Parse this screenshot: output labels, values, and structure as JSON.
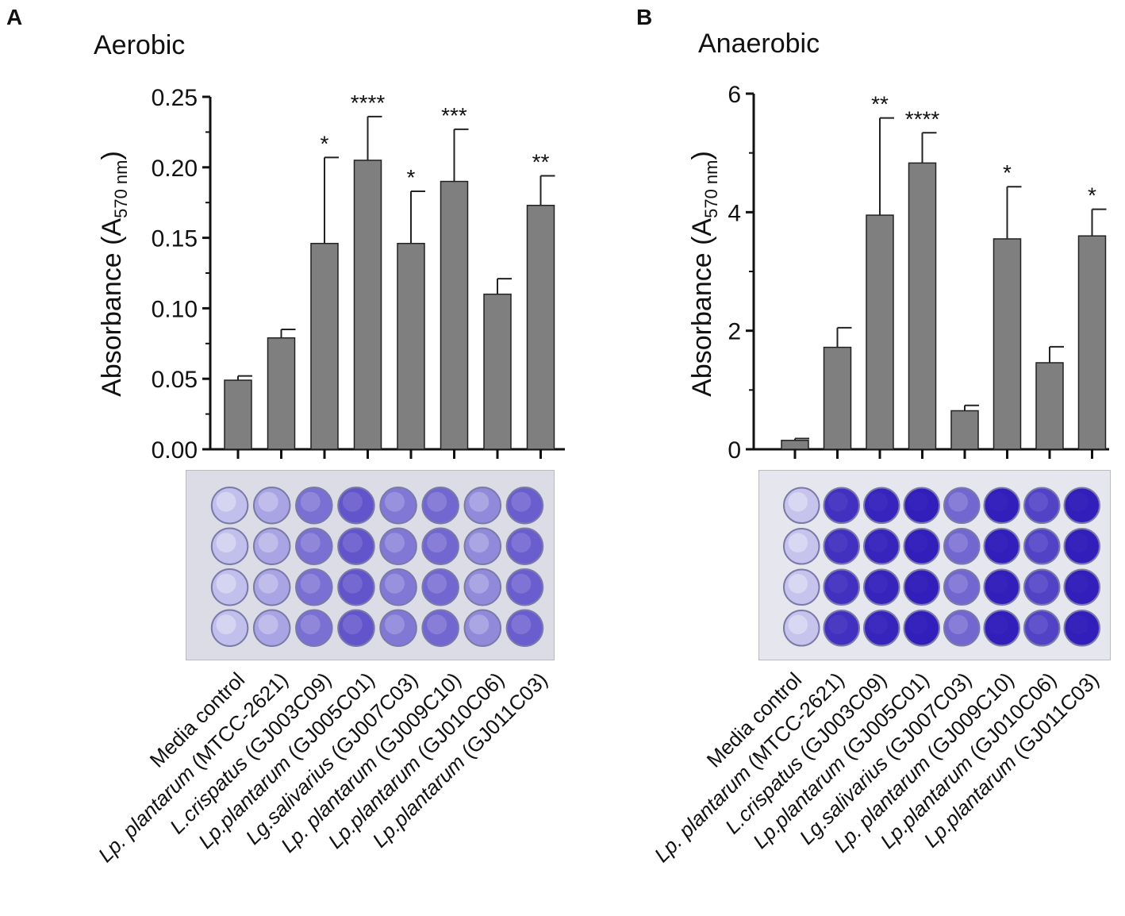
{
  "panels": [
    {
      "letter": "A",
      "title": "Aerobic",
      "photo_alt": "96-well plate crystal violet staining (aerobic)"
    },
    {
      "letter": "B",
      "title": "Anaerobic",
      "photo_alt": "96-well plate crystal violet staining (anaerobic)"
    }
  ],
  "colors": {
    "bar": "#7f7f7f",
    "bar_edge": "#222222",
    "stain_light": "#c9c8ee",
    "stain_dark": "#2a16b8"
  },
  "chart_data": [
    {
      "type": "bar",
      "title": "Aerobic",
      "ylabel_main": "Absorbance (A",
      "ylabel_sub": "570 nm",
      "ylabel_close": ")",
      "ylim": [
        0,
        0.25
      ],
      "yticks": [
        0,
        0.05,
        0.1,
        0.15,
        0.2,
        0.25
      ],
      "yticklabels": [
        "0.00",
        "0.05",
        "0.10",
        "0.15",
        "0.20",
        "0.25"
      ],
      "categories": [
        {
          "prefix": "",
          "species": "Media control",
          "strain": ""
        },
        {
          "prefix": "Lp. ",
          "species": "plantarum",
          "strain": " (MTCC-2621)"
        },
        {
          "prefix": "L.",
          "species": "crispatus",
          "strain": " (GJ003C09)"
        },
        {
          "prefix": "Lp.",
          "species": "plantarum",
          "strain": " (GJ005C01)"
        },
        {
          "prefix": "Lg.",
          "species": "salivarius",
          "strain": " (GJ007C03)"
        },
        {
          "prefix": "Lp. ",
          "species": "plantarum",
          "strain": " (GJ009C10)"
        },
        {
          "prefix": "Lp.",
          "species": "plantarum",
          "strain": " (GJ010C06)"
        },
        {
          "prefix": "Lp.",
          "species": "plantarum",
          "strain": " (GJ011C03)"
        }
      ],
      "values": [
        0.049,
        0.079,
        0.146,
        0.205,
        0.146,
        0.19,
        0.11,
        0.173
      ],
      "errors": [
        0.003,
        0.006,
        0.061,
        0.031,
        0.037,
        0.037,
        0.011,
        0.021
      ],
      "significance": [
        "",
        "",
        "*",
        "****",
        "*",
        "***",
        "",
        "**"
      ],
      "well_intensity": [
        0.05,
        0.2,
        0.5,
        0.65,
        0.45,
        0.55,
        0.35,
        0.6
      ]
    },
    {
      "type": "bar",
      "title": "Anaerobic",
      "ylabel_main": "Absorbance (A",
      "ylabel_sub": "570 nm",
      "ylabel_close": ")",
      "ylim": [
        0,
        6
      ],
      "yticks": [
        0,
        2,
        4,
        6
      ],
      "yticklabels": [
        "0",
        "2",
        "4",
        "6"
      ],
      "categories": [
        {
          "prefix": "",
          "species": "Media control",
          "strain": ""
        },
        {
          "prefix": "Lp. ",
          "species": "plantarum",
          "strain": " (MTCC-2621)"
        },
        {
          "prefix": "L.",
          "species": "crispatus",
          "strain": " (GJ003C09)"
        },
        {
          "prefix": "Lp.",
          "species": "plantarum",
          "strain": " (GJ005C01)"
        },
        {
          "prefix": "Lg.",
          "species": "salivarius",
          "strain": " (GJ007C03)"
        },
        {
          "prefix": "Lp. ",
          "species": "plantarum",
          "strain": " (GJ009C10)"
        },
        {
          "prefix": "Lp.",
          "species": "plantarum",
          "strain": " (GJ010C06)"
        },
        {
          "prefix": "Lp.",
          "species": "plantarum",
          "strain": " (GJ011C03)"
        }
      ],
      "values": [
        0.15,
        1.72,
        3.95,
        4.83,
        0.65,
        3.55,
        1.46,
        3.6
      ],
      "errors": [
        0.03,
        0.33,
        1.64,
        0.51,
        0.09,
        0.88,
        0.27,
        0.45
      ],
      "significance": [
        "",
        "",
        "**",
        "****",
        "",
        "*",
        "",
        "*"
      ],
      "well_intensity": [
        0.02,
        0.85,
        0.92,
        0.95,
        0.55,
        0.95,
        0.75,
        0.95
      ]
    }
  ]
}
